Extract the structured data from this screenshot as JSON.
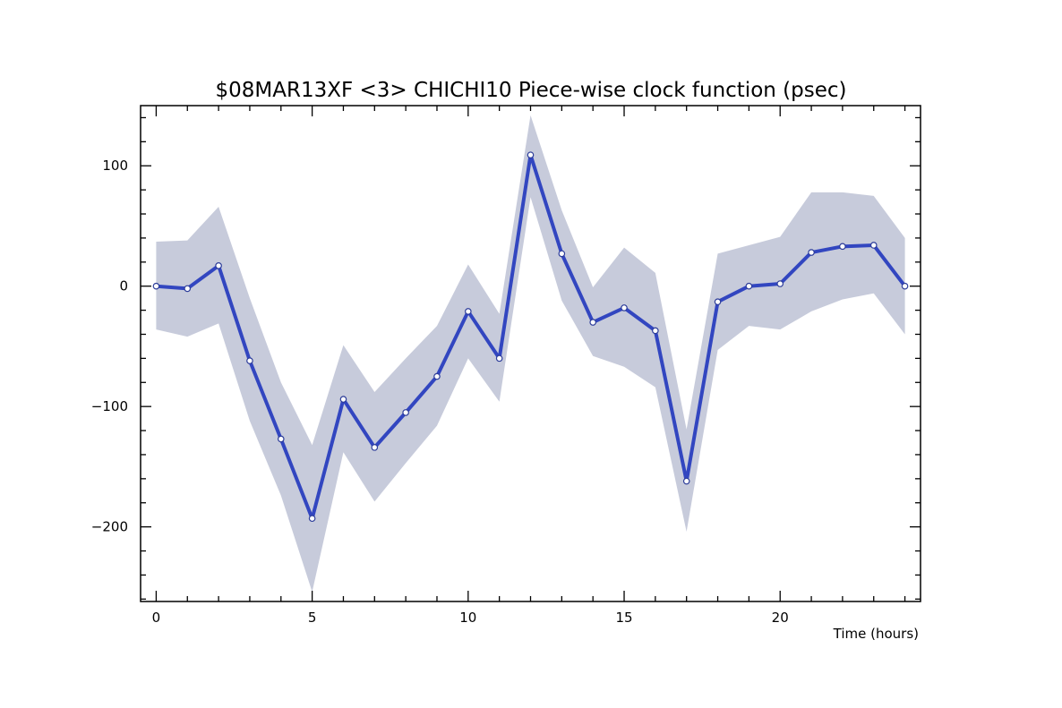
{
  "chart_data": {
    "type": "line",
    "title": "$08MAR13XF <3>  CHICHI10  Piece-wise clock function (psec)",
    "xlabel": "Time (hours)",
    "ylabel": "",
    "xlim": [
      -0.5,
      24.5
    ],
    "ylim": [
      -262,
      150
    ],
    "x_ticks": [
      0,
      5,
      10,
      15,
      20
    ],
    "y_ticks": [
      -200,
      -100,
      0,
      100
    ],
    "x_minor_step": 1,
    "y_minor_step": 20,
    "grid": false,
    "legend": "none",
    "colors": {
      "line": "#3246c0",
      "band": "#c7cbdb",
      "marker_fill": "#ffffff",
      "marker_edge": "#2d3d9a",
      "axes": "#000000"
    },
    "series": [
      {
        "x": [
          0,
          1,
          2,
          3,
          4,
          5,
          6,
          7,
          8,
          9,
          10,
          11,
          12,
          13,
          14,
          15,
          16,
          17,
          18,
          19,
          20,
          21,
          22,
          23,
          24
        ],
        "values": [
          0,
          -2,
          17,
          -62,
          -127,
          -193,
          -94,
          -134,
          -105,
          -75,
          -21,
          -60,
          109,
          27,
          -30,
          -18,
          -37,
          -162,
          -13,
          0,
          2,
          28,
          33,
          34,
          0
        ],
        "upper": [
          37,
          38,
          66,
          -10,
          -80,
          -132,
          -49,
          -88,
          -60,
          -33,
          18,
          -23,
          142,
          63,
          -1,
          32,
          11,
          -119,
          27,
          34,
          41,
          78,
          78,
          75,
          40
        ],
        "lower": [
          -36,
          -42,
          -31,
          -112,
          -174,
          -254,
          -138,
          -179,
          -147,
          -116,
          -60,
          -96,
          74,
          -12,
          -58,
          -67,
          -84,
          -204,
          -53,
          -33,
          -36,
          -21,
          -11,
          -6,
          -40
        ]
      }
    ]
  }
}
